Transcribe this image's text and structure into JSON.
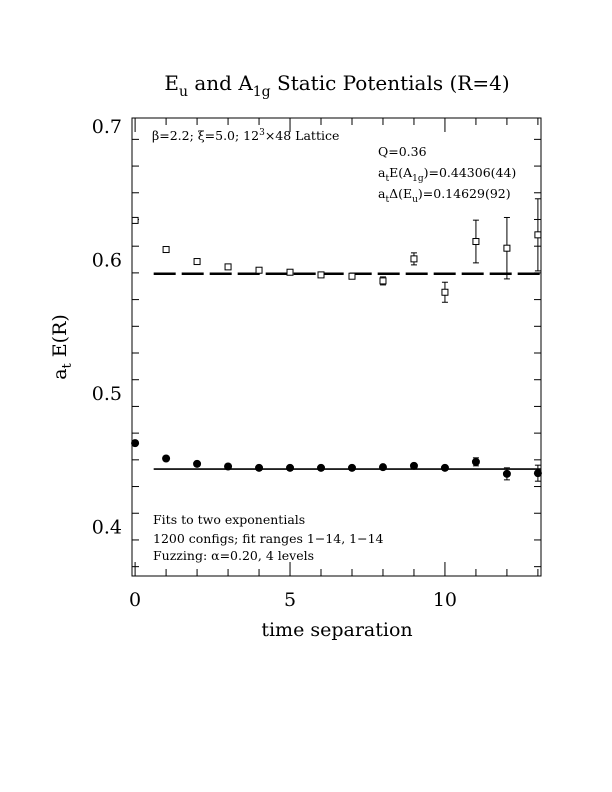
{
  "chart_data": {
    "type": "scatter",
    "title": {
      "parts": [
        {
          "t": "E"
        },
        {
          "t": "u",
          "sub": true
        },
        {
          "t": " and A"
        },
        {
          "t": "1g",
          "sub": true
        },
        {
          "t": " Static Potentials (R=4)"
        }
      ]
    },
    "xlabel": "time separation",
    "ylabel": {
      "parts": [
        {
          "t": "a"
        },
        {
          "t": "t",
          "sub": true
        },
        {
          "t": " E(R)"
        }
      ]
    },
    "xlim": [
      -0.1,
      13.1
    ],
    "ylim": [
      0.363,
      0.706
    ],
    "x_ticks": [
      0,
      5,
      10
    ],
    "x_tick_labels": [
      "0",
      "5",
      "10"
    ],
    "y_ticks": [
      0.4,
      0.5,
      0.6,
      0.7
    ],
    "y_tick_labels": [
      "0.4",
      "0.5",
      "0.6",
      "0.7"
    ],
    "grid": false,
    "annotations": {
      "lattice": {
        "parts": [
          {
            "t": "β=2.2; ξ=5.0; 12"
          },
          {
            "t": "3",
            "sup": true
          },
          {
            "t": "×48 Lattice"
          }
        ]
      },
      "q": {
        "parts": [
          {
            "t": "Q=0.36"
          }
        ]
      },
      "a1g_energy": {
        "parts": [
          {
            "t": "a"
          },
          {
            "t": "t",
            "sub": true
          },
          {
            "t": "E(A"
          },
          {
            "t": "1g",
            "sub": true
          },
          {
            "t": ")=0.44306(44)"
          }
        ]
      },
      "eu_gap": {
        "parts": [
          {
            "t": "a"
          },
          {
            "t": "t",
            "sub": true
          },
          {
            "t": "Δ(E"
          },
          {
            "t": "u",
            "sub": true
          },
          {
            "t": ")=0.14629(92)"
          }
        ]
      },
      "fits": {
        "parts": [
          {
            "t": "Fits to two exponentials"
          }
        ]
      },
      "configs": {
        "parts": [
          {
            "t": "1200 configs; fit ranges 1−14, 1−14"
          }
        ]
      },
      "fuzzing": {
        "parts": [
          {
            "t": "Fuzzing: α=0.20, 4 levels"
          }
        ]
      }
    },
    "series": [
      {
        "marker": "open-square",
        "x": [
          0,
          1,
          2,
          3,
          4,
          5,
          6,
          7,
          8,
          9,
          10,
          11,
          12,
          13
        ],
        "y": [
          0.6293,
          0.6075,
          0.5985,
          0.5945,
          0.592,
          0.5905,
          0.5885,
          0.5875,
          0.584,
          0.6005,
          0.5755,
          0.6135,
          0.6085,
          0.6185
        ],
        "yerr": [
          0.001,
          0.0012,
          0.0012,
          0.0012,
          0.0012,
          0.0012,
          0.0015,
          0.002,
          0.003,
          0.0045,
          0.0075,
          0.016,
          0.023,
          0.027
        ],
        "fit": {
          "y": 0.58935,
          "x_range": [
            0.6,
            13.1
          ],
          "style": "dashed"
        }
      },
      {
        "marker": "filled-circle",
        "x": [
          0,
          1,
          2,
          3,
          4,
          5,
          6,
          7,
          8,
          9,
          10,
          11,
          12,
          13
        ],
        "y": [
          0.4625,
          0.451,
          0.447,
          0.445,
          0.444,
          0.444,
          0.444,
          0.444,
          0.4445,
          0.4455,
          0.444,
          0.4485,
          0.4395,
          0.44
        ],
        "yerr": [
          0.0008,
          0.0008,
          0.0008,
          0.0008,
          0.0008,
          0.0008,
          0.0008,
          0.0008,
          0.001,
          0.0012,
          0.0015,
          0.003,
          0.0045,
          0.006
        ],
        "fit": {
          "y": 0.44306,
          "x_range": [
            0.6,
            13.1
          ],
          "style": "solid"
        }
      }
    ]
  }
}
